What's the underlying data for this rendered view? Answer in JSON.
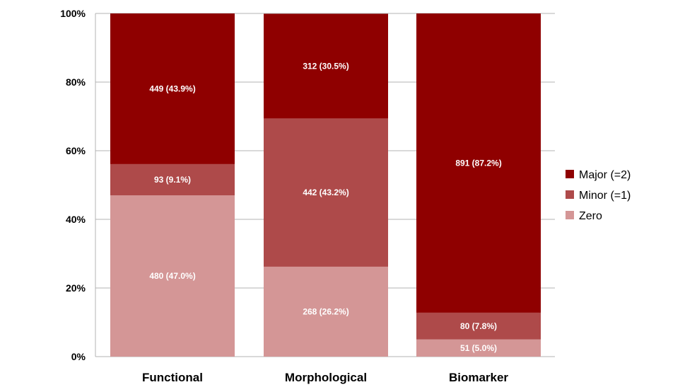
{
  "chart_data": {
    "type": "bar",
    "stacked": true,
    "percent": true,
    "categories": [
      "Functional",
      "Morphological",
      "Biomarker"
    ],
    "ylim": [
      0,
      100
    ],
    "yticks": [
      "0%",
      "20%",
      "40%",
      "60%",
      "80%",
      "100%"
    ],
    "grid": true,
    "legend_position": "right",
    "series": [
      {
        "name": "Zero",
        "color": "#d49696",
        "values": [
          47.0,
          26.2,
          5.0
        ],
        "labels": [
          "480 (47.0%)",
          "268 (26.2%)",
          "51 (5.0%)"
        ]
      },
      {
        "name": "Minor (=1)",
        "color": "#ae4a4a",
        "values": [
          9.1,
          43.2,
          7.8
        ],
        "labels": [
          "93 (9.1%)",
          "442 (43.2%)",
          "80 (7.8%)"
        ]
      },
      {
        "name": "Major (=2)",
        "color": "#8f0000",
        "values": [
          43.9,
          30.5,
          87.2
        ],
        "labels": [
          "449 (43.9%)",
          "312 (30.5%)",
          "891 (87.2%)"
        ]
      }
    ],
    "legend_order": [
      "Major (=2)",
      "Minor (=1)",
      "Zero"
    ]
  }
}
